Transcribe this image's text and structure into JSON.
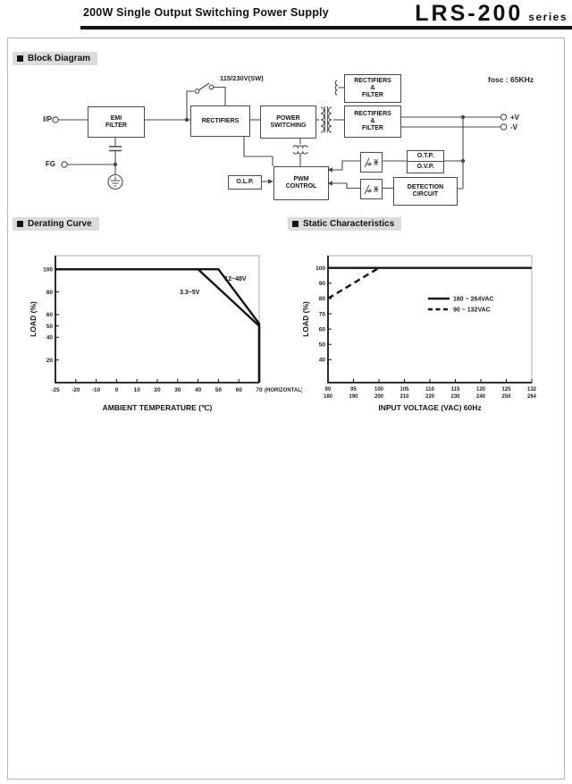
{
  "header": {
    "title": "200W Single Output Switching Power Supply",
    "series_name": "LRS-200",
    "series_suffix": "series"
  },
  "sections": {
    "block_diagram": "Block Diagram",
    "derating_curve": "Derating Curve",
    "static_characteristics": "Static Characteristics"
  },
  "block_diagram": {
    "fosc_label": "fosc : 65KHz",
    "switch_label": "115/230V(SW)",
    "terminals": {
      "input": "I/P",
      "fg": "FG",
      "v_plus": "+V",
      "v_minus": "-V"
    },
    "blocks": {
      "emi_filter": [
        "EMI",
        "FILTER"
      ],
      "rectifiers": [
        "RECTIFIERS"
      ],
      "power_switching": [
        "POWER",
        "SWITCHING"
      ],
      "rectifiers_filter_top": [
        "RECTIFIERS",
        "&",
        "FILTER"
      ],
      "rectifiers_filter_out": [
        "RECTIFIERS",
        "&",
        "FILTER"
      ],
      "olp": [
        "O.L.P."
      ],
      "pwm_control": [
        "PWM",
        "CONTROL"
      ],
      "otp": [
        "O.T.P."
      ],
      "ovp": [
        "O.V.P."
      ],
      "detection_circuit": [
        "DETECTION",
        "CIRCUIT"
      ]
    }
  },
  "chart_data": [
    {
      "id": "derating",
      "type": "line",
      "title": "Derating Curve",
      "xlabel": "AMBIENT TEMPERATURE (℃)",
      "ylabel": "LOAD (%)",
      "x_ticks": [
        -25,
        -20,
        -10,
        0,
        10,
        20,
        30,
        40,
        50,
        60,
        70
      ],
      "x_extra_label": "(HORIZONTAL)",
      "y_ticks": [
        20,
        40,
        50,
        60,
        80,
        100
      ],
      "ylim": [
        0,
        112
      ],
      "grid": false,
      "series": [
        {
          "name": "12~48V",
          "style": "solid",
          "points": [
            [
              -25,
              100
            ],
            [
              50,
              100
            ],
            [
              70,
              52
            ],
            [
              70,
              0
            ]
          ],
          "label": {
            "text": "12~48V",
            "x": 53,
            "y": 90
          }
        },
        {
          "name": "3.3~5V",
          "style": "solid",
          "points": [
            [
              -25,
              100
            ],
            [
              40,
              100
            ],
            [
              70,
              50
            ],
            [
              70,
              0
            ]
          ],
          "label": {
            "text": "3.3~5V",
            "x": 31,
            "y": 78
          }
        }
      ]
    },
    {
      "id": "static",
      "type": "line",
      "title": "Static Characteristics",
      "xlabel": "INPUT VOLTAGE (VAC) 60Hz",
      "ylabel": "LOAD (%)",
      "x_ticks_dual": [
        [
          90,
          180
        ],
        [
          95,
          190
        ],
        [
          100,
          200
        ],
        [
          105,
          210
        ],
        [
          110,
          220
        ],
        [
          115,
          230
        ],
        [
          120,
          240
        ],
        [
          125,
          250
        ],
        [
          132,
          264
        ]
      ],
      "y_ticks": [
        40,
        50,
        60,
        70,
        80,
        90,
        100
      ],
      "ylim": [
        25,
        108
      ],
      "grid": false,
      "legend_position": "upper-right",
      "series": [
        {
          "name": "180 ~ 264VAC",
          "style": "solid",
          "points": [
            [
              90,
              100
            ],
            [
              132,
              100
            ]
          ]
        },
        {
          "name": "90 ~ 132VAC",
          "style": "dashed",
          "points": [
            [
              90,
              80
            ],
            [
              100,
              100
            ]
          ]
        }
      ]
    }
  ]
}
